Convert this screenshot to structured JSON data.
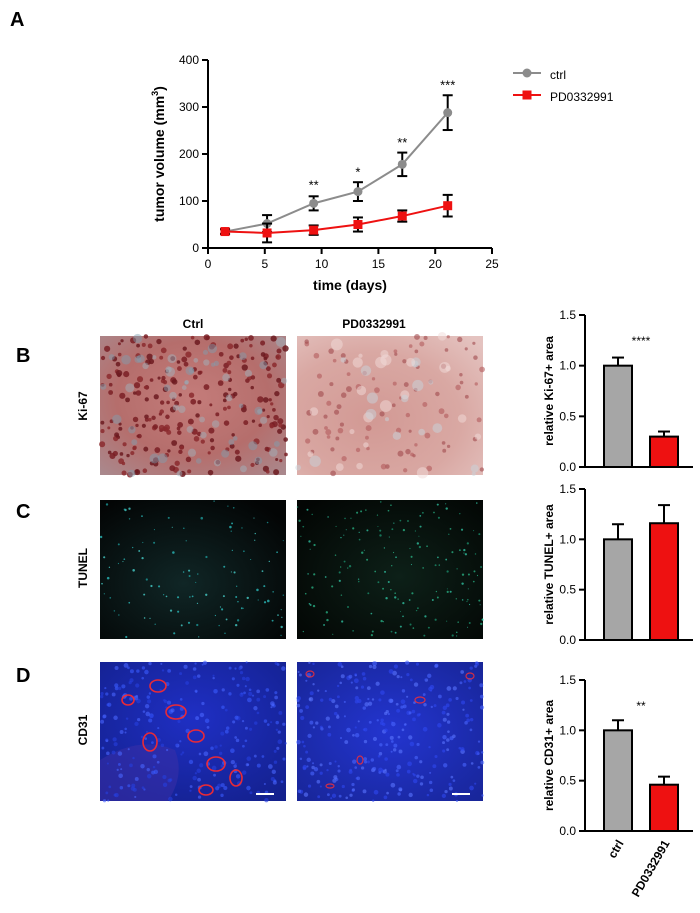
{
  "panels": {
    "a": "A",
    "b": "B",
    "c": "C",
    "d": "D"
  },
  "colors": {
    "ctrl": "#8c8c8c",
    "pd": "#ee1111",
    "error": "#000000"
  },
  "images": {
    "col_ctrl": "Ctrl",
    "col_pd": "PD0332991",
    "row_ki67": "Ki-67",
    "row_tunel": "TUNEL",
    "row_cd31": "CD31"
  },
  "chart_data": [
    {
      "type": "line",
      "panel": "A",
      "xlabel": "time (days)",
      "ylabel_main": "tumor volume (mm",
      "ylabel_sup": "3",
      "ylabel_end": ")",
      "xlim": [
        0,
        25
      ],
      "ylim": [
        0,
        400
      ],
      "xticks": [
        0,
        5,
        10,
        15,
        20,
        25
      ],
      "yticks": [
        0,
        100,
        200,
        300,
        400
      ],
      "legend_position": "top-right",
      "series": [
        {
          "name": "ctrl",
          "color": "#8c8c8c",
          "marker": "circle",
          "x": [
            1.5,
            5.2,
            9.3,
            13.2,
            17.1,
            21.1
          ],
          "y": [
            35,
            52,
            95,
            120,
            178,
            288
          ],
          "err": [
            5,
            18,
            15,
            20,
            25,
            37
          ]
        },
        {
          "name": "PD0332991",
          "color": "#ee1111",
          "marker": "square",
          "x": [
            1.5,
            5.2,
            9.3,
            13.2,
            17.1,
            21.1
          ],
          "y": [
            35,
            32,
            38,
            50,
            68,
            90
          ],
          "err": [
            5,
            20,
            10,
            15,
            12,
            23
          ]
        }
      ],
      "annotations": [
        {
          "x": 9.3,
          "y": 125,
          "text": "**"
        },
        {
          "x": 13.2,
          "y": 152,
          "text": "*"
        },
        {
          "x": 17.1,
          "y": 215,
          "text": "**"
        },
        {
          "x": 21.1,
          "y": 337,
          "text": "***"
        }
      ]
    },
    {
      "type": "bar",
      "panel": "B",
      "ylabel": "relative Ki-67+ area",
      "ylim": [
        0,
        1.5
      ],
      "yticks": [
        "0.0",
        "0.5",
        "1.0",
        "1.5"
      ],
      "categories": [
        "ctrl",
        "PD0332991"
      ],
      "values": [
        1.0,
        0.3
      ],
      "err": [
        0.08,
        0.05
      ],
      "colors": [
        "#a6a6a6",
        "#ee1111"
      ],
      "significance": "****",
      "show_xticklabels": false
    },
    {
      "type": "bar",
      "panel": "C",
      "ylabel": "relative TUNEL+ area",
      "ylim": [
        0,
        1.5
      ],
      "yticks": [
        "0.0",
        "0.5",
        "1.0",
        "1.5"
      ],
      "categories": [
        "ctrl",
        "PD0332991"
      ],
      "values": [
        1.0,
        1.16
      ],
      "err": [
        0.15,
        0.18
      ],
      "colors": [
        "#a6a6a6",
        "#ee1111"
      ],
      "significance": "",
      "show_xticklabels": false
    },
    {
      "type": "bar",
      "panel": "D",
      "ylabel": "relative CD31+ area",
      "ylim": [
        0,
        1.5
      ],
      "yticks": [
        "0.0",
        "0.5",
        "1.0",
        "1.5"
      ],
      "categories": [
        "ctrl",
        "PD0332991"
      ],
      "values": [
        1.0,
        0.46
      ],
      "err": [
        0.1,
        0.08
      ],
      "colors": [
        "#a6a6a6",
        "#ee1111"
      ],
      "significance": "**",
      "show_xticklabels": true
    }
  ]
}
